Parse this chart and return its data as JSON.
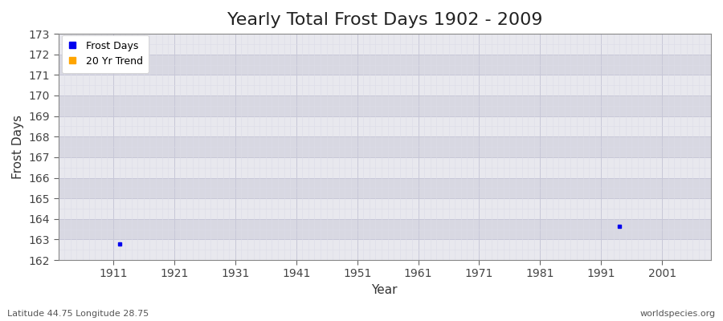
{
  "title": "Yearly Total Frost Days 1902 - 2009",
  "xlabel": "Year",
  "ylabel": "Frost Days",
  "subtitle": "Latitude 44.75 Longitude 28.75",
  "watermark": "worldspecies.org",
  "xlim": [
    1902,
    2009
  ],
  "ylim": [
    162,
    173
  ],
  "yticks": [
    162,
    163,
    164,
    165,
    166,
    167,
    168,
    169,
    170,
    171,
    172,
    173
  ],
  "xticks": [
    1911,
    1921,
    1931,
    1941,
    1951,
    1961,
    1971,
    1981,
    1991,
    2001
  ],
  "data_points": [
    {
      "year": 1912,
      "value": 162.8
    },
    {
      "year": 1994,
      "value": 163.65
    }
  ],
  "frost_days_color": "#0000ee",
  "trend_color": "#ffa500",
  "band_color_light": "#e8e8ee",
  "band_color_dark": "#d8d8e2",
  "grid_color_major": "#c8c8d8",
  "grid_color_minor": "#dcdce8",
  "fig_background": "#ffffff",
  "title_fontsize": 16,
  "axis_label_fontsize": 11,
  "tick_fontsize": 10,
  "legend_labels": [
    "Frost Days",
    "20 Yr Trend"
  ]
}
